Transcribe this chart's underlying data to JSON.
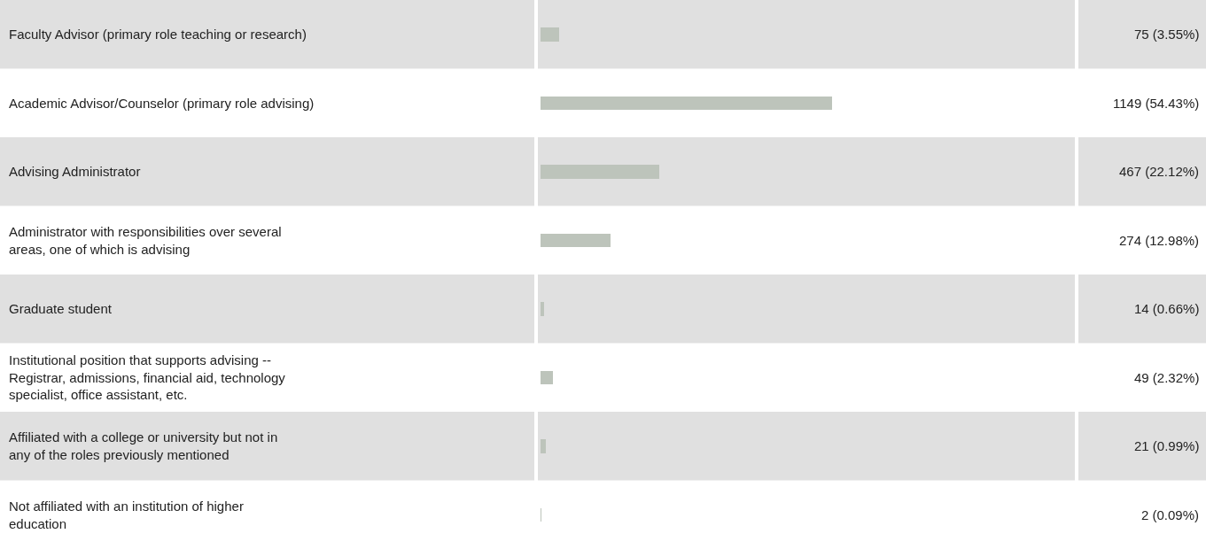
{
  "chart_data": {
    "type": "bar",
    "orientation": "horizontal",
    "categories": [
      "Faculty Advisor (primary role teaching or research)",
      "Academic Advisor/Counselor (primary role advising)",
      "Advising Administrator",
      "Administrator with responsibilities over several areas, one of which is advising",
      "Graduate student",
      "Institutional position that supports advising -- Registrar, admissions, financial aid, technology specialist, office assistant, etc.",
      "Affiliated with a college or university but not in any of the roles previously mentioned",
      "Not affiliated with an institution of higher education"
    ],
    "values": [
      75,
      1149,
      467,
      274,
      14,
      49,
      21,
      2
    ],
    "value_labels": [
      "75 (3.55%)",
      "1149 (54.43%)",
      "467 (22.12%)",
      "274 (12.98%)",
      "14 (0.66%)",
      "49 (2.32%)",
      "21 (0.99%)",
      "2 (0.09%)"
    ],
    "color": "#bdc4bb",
    "xlim": [
      0,
      2111
    ],
    "tick_labels": false,
    "grid": false
  }
}
